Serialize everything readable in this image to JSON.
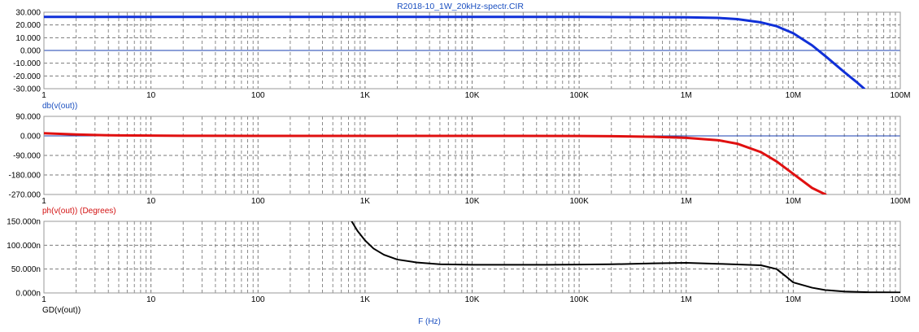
{
  "title": "R2018-10_1W_20kHz-spectr.CIR",
  "x_axis": {
    "label": "F (Hz)",
    "scale": "log",
    "range": [
      1,
      100000000
    ],
    "tick_labels": [
      "1",
      "10",
      "100",
      "1K",
      "10K",
      "100K",
      "1M",
      "10M",
      "100M"
    ]
  },
  "colors": {
    "db": "#1030d8",
    "ph": "#e01010",
    "gd": "#000000",
    "zero_line": "#1a3fb0",
    "grid": "#7a7a7a"
  },
  "chart_data": [
    {
      "type": "line",
      "name": "db(v(out))",
      "ylabel": "db(v(out))",
      "ylim": [
        -30,
        30
      ],
      "y_tick_labels": [
        "30.000",
        "20.000",
        "10.000",
        "0.000",
        "-10.000",
        "-20.000",
        "-30.000"
      ],
      "xscale": "log",
      "grid": true,
      "series": [
        {
          "name": "db(v(out))",
          "color": "#1030d8",
          "x": [
            1,
            10,
            100,
            1000,
            10000,
            100000,
            1000000,
            2000000,
            3000000,
            5000000,
            7000000,
            10000000,
            15000000,
            20000000,
            30000000,
            40000000,
            46000000
          ],
          "values": [
            26.3,
            26.3,
            26.3,
            26.3,
            26.3,
            26.3,
            26.0,
            25.5,
            24.6,
            22.0,
            19.0,
            13.5,
            4.0,
            -4.5,
            -17.0,
            -25.5,
            -30.0
          ]
        }
      ]
    },
    {
      "type": "line",
      "name": "ph(v(out)) (Degrees)",
      "ylabel": "ph(v(out)) (Degrees)",
      "ylim": [
        -270,
        90
      ],
      "y_tick_labels": [
        "90.000",
        "0.000",
        "-90.000",
        "-180.000",
        "-270.000"
      ],
      "xscale": "log",
      "grid": true,
      "series": [
        {
          "name": "ph(v(out))",
          "color": "#e01010",
          "x": [
            1,
            1.5,
            2,
            3,
            5,
            10,
            20,
            100,
            1000,
            10000,
            100000,
            200000,
            500000,
            1000000,
            2000000,
            3000000,
            5000000,
            7000000,
            10000000,
            15000000,
            20000000
          ],
          "values": [
            12.0,
            9.0,
            6.5,
            4.0,
            2.5,
            1.5,
            0.5,
            0.0,
            0.0,
            0.0,
            -0.5,
            -1.5,
            -4.0,
            -9.0,
            -20.0,
            -36.0,
            -75.0,
            -118.0,
            -175.0,
            -240.0,
            -270.0
          ]
        }
      ]
    },
    {
      "type": "line",
      "name": "GD(v(out))",
      "ylabel": "GD(v(out))",
      "ylim": [
        0,
        1.5e-07
      ],
      "y_tick_labels": [
        "150.000n",
        "100.000n",
        "50.000n",
        "0.000n"
      ],
      "xscale": "log",
      "grid": true,
      "series": [
        {
          "name": "GD(v(out))",
          "color": "#000000",
          "x": [
            750,
            850,
            1000,
            1200,
            1500,
            2000,
            3000,
            5000,
            10000,
            50000,
            100000,
            200000,
            500000,
            1000000,
            2000000,
            5000000,
            7000000,
            8500000,
            10000000,
            15000000,
            20000000,
            30000000,
            50000000,
            100000000
          ],
          "values": [
            1.5e-07,
            1.3e-07,
            1.1e-07,
            9.3e-08,
            8e-08,
            7e-08,
            6.4e-08,
            6e-08,
            5.9e-08,
            5.9e-08,
            5.95e-08,
            6e-08,
            6.2e-08,
            6.3e-08,
            6.1e-08,
            5.8e-08,
            5e-08,
            3.5e-08,
            2.2e-08,
            1.1e-08,
            6e-09,
            3e-09,
            1.5e-09,
            1e-09
          ]
        }
      ]
    }
  ]
}
